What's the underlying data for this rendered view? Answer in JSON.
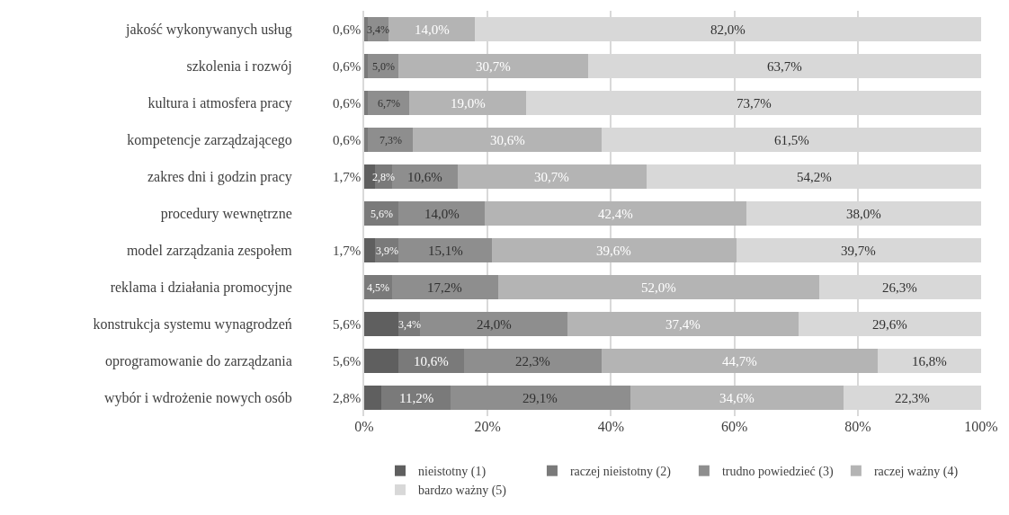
{
  "chart_data": {
    "type": "bar",
    "orientation": "horizontal",
    "stacked": true,
    "categories": [
      "jakość wykonywanych usług",
      "szkolenia i rozwój",
      "kultura i atmosfera pracy",
      "kompetencje zarządzającego",
      "zakres dni i godzin pracy",
      "procedury wewnętrzne",
      "model zarządzania zespołem",
      "reklama i działania promocyjne",
      "konstrukcja systemu wynagrodzeń",
      "oprogramowanie do zarządzania",
      "wybór i wdrożenie nowych osób"
    ],
    "series": [
      {
        "name": "nieistotny (1)",
        "color": "#5f5f5f",
        "values": [
          null,
          null,
          null,
          null,
          1.7,
          null,
          1.7,
          null,
          5.6,
          5.6,
          2.8
        ],
        "value_labels": [
          null,
          null,
          null,
          null,
          "1,7%",
          null,
          "1,7%",
          null,
          "5,6%",
          "5,6%",
          "2,8%"
        ]
      },
      {
        "name": "raczej nieistotny (2)",
        "color": "#7a7a7a",
        "values": [
          0.6,
          0.6,
          0.6,
          0.6,
          2.8,
          5.6,
          3.9,
          4.5,
          3.4,
          10.6,
          11.2
        ],
        "value_labels": [
          "0,6%",
          "0,6%",
          "0,6%",
          "0,6%",
          "2,8%",
          "5,6%",
          "3,9%",
          "4,5%",
          "3,4%",
          "10,6%",
          "11,2%"
        ]
      },
      {
        "name": "trudno powiedzieć (3)",
        "color": "#8e8e8e",
        "values": [
          3.4,
          5.0,
          6.7,
          7.3,
          10.6,
          14.0,
          15.1,
          17.2,
          24.0,
          22.3,
          29.1
        ],
        "value_labels": [
          "3,4%",
          "5,0%",
          "6,7%",
          "7,3%",
          "10,6%",
          "14,0%",
          "15,1%",
          "17,2%",
          "24,0%",
          "22,3%",
          "29,1%"
        ]
      },
      {
        "name": "raczej ważny (4)",
        "color": "#b4b4b4",
        "values": [
          14.0,
          30.7,
          19.0,
          30.6,
          30.7,
          42.4,
          39.6,
          52.0,
          37.4,
          44.7,
          34.6
        ],
        "value_labels": [
          "14,0%",
          "30,7%",
          "19,0%",
          "30,6%",
          "30,7%",
          "42,4%",
          "39,6%",
          "52,0%",
          "37,4%",
          "44,7%",
          "34,6%"
        ]
      },
      {
        "name": "bardzo ważny (5)",
        "color": "#d8d8d8",
        "values": [
          82.0,
          63.7,
          73.7,
          61.5,
          54.2,
          38.0,
          39.7,
          26.3,
          29.6,
          16.8,
          22.3
        ],
        "value_labels": [
          "82,0%",
          "63,7%",
          "73,7%",
          "61,5%",
          "54,2%",
          "38,0%",
          "39,7%",
          "26,3%",
          "29,6%",
          "16,8%",
          "22,3%"
        ]
      }
    ],
    "xlim": [
      0,
      100
    ],
    "xticks": [
      {
        "value": 0,
        "label": "0%"
      },
      {
        "value": 20,
        "label": "20%"
      },
      {
        "value": 40,
        "label": "40%"
      },
      {
        "value": 60,
        "label": "60%"
      },
      {
        "value": 80,
        "label": "80%"
      },
      {
        "value": 100,
        "label": "100%"
      }
    ],
    "grid": "x",
    "legend": "bottom"
  }
}
